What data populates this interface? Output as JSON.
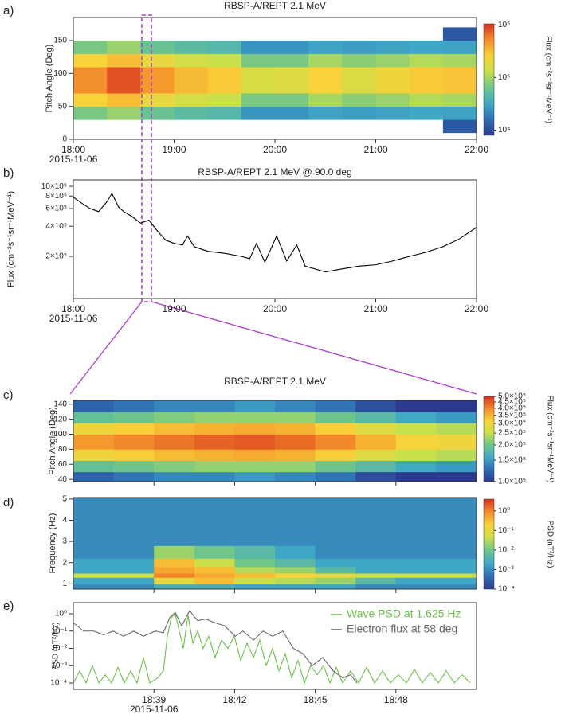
{
  "chart_data": [
    {
      "type": "heatmap",
      "panel_label": "a)",
      "title": "RBSP-A/REPT 2.1 MeV",
      "ylabel": "Pitch Angle (Deg)",
      "colorbar_label": "Flux (cm⁻²s⁻¹sr⁻¹MeV⁻¹)",
      "x_date_label": "2015-11-06",
      "xlim": [
        18,
        22
      ],
      "ylim": [
        0,
        185
      ],
      "xticks": [
        {
          "value": 18,
          "label": "18:00"
        },
        {
          "value": 19,
          "label": "19:00"
        },
        {
          "value": 20,
          "label": "20:00"
        },
        {
          "value": 21,
          "label": "21:00"
        },
        {
          "value": 22,
          "label": "22:00"
        }
      ],
      "yticks": [
        0,
        50,
        100,
        150
      ],
      "show_x_tick_labels": true,
      "x_edges": [
        18,
        18.333,
        18.667,
        19,
        19.333,
        19.667,
        20,
        20.333,
        20.667,
        21,
        21.333,
        21.667,
        22
      ],
      "y_edges": [
        10,
        30,
        50,
        70,
        90,
        110,
        130,
        150,
        170
      ],
      "z": [
        [
          null,
          null,
          null,
          null,
          null,
          null,
          null,
          null,
          null,
          null,
          null,
          12000
        ],
        [
          70000,
          90000,
          60000,
          50000,
          45000,
          25000,
          25000,
          30000,
          28000,
          30000,
          32000,
          30000
        ],
        [
          250000,
          320000,
          200000,
          150000,
          130000,
          70000,
          70000,
          100000,
          80000,
          90000,
          110000,
          100000
        ],
        [
          500000,
          800000,
          450000,
          330000,
          280000,
          160000,
          180000,
          260000,
          170000,
          220000,
          280000,
          300000
        ],
        [
          500000,
          800000,
          450000,
          330000,
          280000,
          160000,
          180000,
          260000,
          170000,
          220000,
          280000,
          300000
        ],
        [
          250000,
          320000,
          200000,
          150000,
          130000,
          70000,
          70000,
          100000,
          80000,
          90000,
          110000,
          100000
        ],
        [
          70000,
          90000,
          60000,
          50000,
          45000,
          25000,
          25000,
          30000,
          28000,
          30000,
          32000,
          30000
        ],
        [
          null,
          null,
          null,
          null,
          null,
          null,
          null,
          null,
          null,
          null,
          null,
          12000
        ]
      ],
      "log_color": true,
      "clim": [
        8000,
        1040000
      ],
      "colorbar_ticks": [
        {
          "value": 10000,
          "label": "10⁴"
        },
        {
          "value": 100000,
          "label": "10⁵"
        },
        {
          "value": 1000000,
          "label": "10⁶"
        }
      ],
      "colormap": [
        "#2b3a8f",
        "#2f6db3",
        "#3fa8c6",
        "#6dc58c",
        "#c8e04a",
        "#f9d23a",
        "#f38c2a",
        "#d7301f"
      ],
      "highlight_xlim": [
        18.68,
        18.775
      ],
      "highlight_color": "#b03cc8"
    },
    {
      "type": "line",
      "panel_label": "b)",
      "title": "RBSP-A/REPT 2.1 MeV @ 90.0 deg",
      "ylabel": "Flux (cm⁻²s⁻¹sr⁻¹MeV⁻¹)",
      "x_date_label": "2015-11-06",
      "log_y": true,
      "xlim": [
        18,
        22
      ],
      "ylim": [
        76000,
        1160000
      ],
      "xticks": [
        {
          "value": 18,
          "label": "18:00"
        },
        {
          "value": 19,
          "label": "19:00"
        },
        {
          "value": 20,
          "label": "20:00"
        },
        {
          "value": 21,
          "label": "21:00"
        },
        {
          "value": 22,
          "label": "22:00"
        }
      ],
      "yticks": [
        {
          "value": 200000,
          "label": "2×10⁵"
        },
        {
          "value": 400000,
          "label": "4×10⁵"
        },
        {
          "value": 600000,
          "label": "6×10⁵"
        },
        {
          "value": 800000,
          "label": "8×10⁵"
        },
        {
          "value": 1000000,
          "label": "10×10⁵"
        }
      ],
      "show_x_tick_labels": true,
      "color": "#000000",
      "x": [
        18,
        18.083,
        18.167,
        18.25,
        18.333,
        18.383,
        18.45,
        18.5,
        18.583,
        18.667,
        18.75,
        18.833,
        18.917,
        19,
        19.083,
        19.133,
        19.2,
        19.333,
        19.5,
        19.667,
        19.75,
        19.817,
        19.9,
        20.017,
        20.117,
        20.217,
        20.3,
        20.5,
        20.667,
        20.833,
        21,
        21.167,
        21.333,
        21.5,
        21.667,
        21.833,
        22
      ],
      "values": [
        780000,
        680000,
        600000,
        560000,
        700000,
        850000,
        620000,
        560000,
        500000,
        430000,
        460000,
        360000,
        290000,
        270000,
        260000,
        320000,
        250000,
        225000,
        215000,
        200000,
        190000,
        270000,
        175000,
        320000,
        180000,
        260000,
        160000,
        140000,
        150000,
        160000,
        165000,
        180000,
        200000,
        220000,
        250000,
        300000,
        390000
      ]
    },
    {
      "type": "heatmap",
      "panel_label": "c)",
      "title": "RBSP-A/REPT 2.1 MeV",
      "ylabel": "Pitch Angle (Deg)",
      "colorbar_label": "Flux (cm⁻²s⁻¹sr⁻¹MeV⁻¹)",
      "xlim": [
        18.6,
        18.85
      ],
      "ylim": [
        37,
        145
      ],
      "xticks": [
        18.65,
        18.7,
        18.75,
        18.8
      ],
      "yticks": [
        40,
        60,
        80,
        100,
        120,
        140
      ],
      "show_x_tick_labels": false,
      "x_edges": [
        18.6,
        18.625,
        18.65,
        18.675,
        18.7,
        18.725,
        18.75,
        18.775,
        18.8,
        18.825,
        18.85
      ],
      "y_edges": [
        37,
        50,
        65,
        80,
        100,
        115,
        130,
        145
      ],
      "z": [
        [
          120000,
          130000,
          140000,
          140000,
          150000,
          140000,
          130000,
          110000,
          100000,
          100000
        ],
        [
          190000,
          200000,
          210000,
          220000,
          220000,
          220000,
          200000,
          180000,
          160000,
          150000
        ],
        [
          300000,
          320000,
          340000,
          350000,
          360000,
          350000,
          320000,
          280000,
          250000,
          240000
        ],
        [
          380000,
          400000,
          420000,
          440000,
          450000,
          430000,
          400000,
          350000,
          310000,
          300000
        ],
        [
          300000,
          320000,
          340000,
          350000,
          360000,
          350000,
          320000,
          280000,
          250000,
          240000
        ],
        [
          190000,
          200000,
          210000,
          220000,
          220000,
          220000,
          200000,
          180000,
          160000,
          150000
        ],
        [
          120000,
          130000,
          140000,
          140000,
          150000,
          140000,
          130000,
          110000,
          100000,
          100000
        ]
      ],
      "log_color": true,
      "clim": [
        100000,
        500000
      ],
      "colorbar_ticks": [
        {
          "value": 100000,
          "label": "1.0×10⁵"
        },
        {
          "value": 150000,
          "label": "1.5×10⁵"
        },
        {
          "value": 200000,
          "label": "2.0×10⁵"
        },
        {
          "value": 250000,
          "label": "2.5×10⁵"
        },
        {
          "value": 300000,
          "label": "3.0×10⁵"
        },
        {
          "value": 350000,
          "label": "3.5×10⁵"
        },
        {
          "value": 400000,
          "label": "4.0×10⁵"
        },
        {
          "value": 450000,
          "label": "4.5×10⁵"
        },
        {
          "value": 500000,
          "label": "5.0×10⁵"
        }
      ],
      "colormap": [
        "#2b3a8f",
        "#2f6db3",
        "#3fa8c6",
        "#6dc58c",
        "#c8e04a",
        "#f9d23a",
        "#f38c2a",
        "#d7301f"
      ]
    },
    {
      "type": "heatmap",
      "panel_label": "d)",
      "ylabel": "Frequency (Hz)",
      "colorbar_label": "PSD (nT²/Hz)",
      "xlim": [
        18.6,
        18.85
      ],
      "ylim": [
        0.75,
        5.07
      ],
      "xticks": [
        18.65,
        18.7,
        18.75,
        18.8
      ],
      "yticks": [
        1,
        2,
        3,
        4,
        5
      ],
      "show_x_tick_labels": false,
      "x_edges": [
        18.6,
        18.625,
        18.65,
        18.675,
        18.7,
        18.725,
        18.75,
        18.775,
        18.8,
        18.825,
        18.85
      ],
      "y_edges": [
        0.75,
        1,
        1.3,
        1.5,
        1.8,
        2.2,
        2.8,
        3.5,
        5.07
      ],
      "z": [
        [
          0.001,
          0.001,
          0.003,
          0.003,
          0.002,
          0.002,
          0.002,
          0.001,
          0.001,
          0.001
        ],
        [
          0.002,
          0.002,
          0.1,
          0.3,
          0.05,
          0.03,
          0.02,
          0.005,
          0.002,
          0.002
        ],
        [
          0.05,
          0.05,
          1,
          0.5,
          0.3,
          0.2,
          0.1,
          0.05,
          0.05,
          0.05
        ],
        [
          0.002,
          0.002,
          0.5,
          0.3,
          0.03,
          0.02,
          0.005,
          0.002,
          0.002,
          0.002
        ],
        [
          0.002,
          0.002,
          0.3,
          0.05,
          0.01,
          0.005,
          0.002,
          0.002,
          0.002,
          0.002
        ],
        [
          0.001,
          0.001,
          0.02,
          0.01,
          0.005,
          0.002,
          0.001,
          0.001,
          0.001,
          0.001
        ],
        [
          0.001,
          0.001,
          0.001,
          0.001,
          0.001,
          0.001,
          0.001,
          0.001,
          0.001,
          0.001
        ],
        [
          0.001,
          0.001,
          0.001,
          0.001,
          0.001,
          0.001,
          0.001,
          0.001,
          0.001,
          0.001
        ]
      ],
      "log_color": true,
      "clim": [
        0.0001,
        4
      ],
      "colorbar_ticks": [
        {
          "value": 0.0001,
          "label": "10⁻⁴"
        },
        {
          "value": 0.001,
          "label": "10⁻³"
        },
        {
          "value": 0.01,
          "label": "10⁻²"
        },
        {
          "value": 0.1,
          "label": "10⁻¹"
        },
        {
          "value": 1,
          "label": "10⁰"
        }
      ],
      "colormap": [
        "#2b3a8f",
        "#2f6db3",
        "#3fa8c6",
        "#6dc58c",
        "#c8e04a",
        "#f9d23a",
        "#f38c2a",
        "#d7301f"
      ]
    },
    {
      "type": "line",
      "panel_label": "e)",
      "ylabel": "PSD (nT²/Hz)",
      "x_date_label": "2015-11-06",
      "log_y": true,
      "xlim": [
        18.6,
        18.85
      ],
      "ylim": [
        4.3e-05,
        4.4
      ],
      "xticks": [
        {
          "value": 18.65,
          "label": "18:39"
        },
        {
          "value": 18.7,
          "label": "18:42"
        },
        {
          "value": 18.75,
          "label": "18:45"
        },
        {
          "value": 18.8,
          "label": "18:48"
        }
      ],
      "yticks": [
        {
          "value": 1,
          "label": "10⁰"
        },
        {
          "value": 0.1,
          "label": "10⁻¹"
        },
        {
          "value": 0.01,
          "label": "10⁻²"
        },
        {
          "value": 0.001,
          "label": "10⁻³"
        },
        {
          "value": 0.0001,
          "label": "10⁻⁴"
        }
      ],
      "show_x_tick_labels": true,
      "legend": "upper right",
      "series": [
        {
          "name": "Wave PSD at 1.625 Hz",
          "color": "#6cc04a",
          "x": [
            18.6,
            18.604,
            18.6079,
            18.6119,
            18.6158,
            18.6198,
            18.6237,
            18.6277,
            18.6316,
            18.6356,
            18.6395,
            18.6435,
            18.6474,
            18.6524,
            18.6558,
            18.6583,
            18.6608,
            18.6632,
            18.6657,
            18.6682,
            18.6711,
            18.6741,
            18.6771,
            18.6805,
            18.684,
            18.6879,
            18.6919,
            18.6958,
            18.6998,
            18.7038,
            18.7077,
            18.7117,
            18.7156,
            18.7196,
            18.7235,
            18.7275,
            18.7314,
            18.7354,
            18.7393,
            18.7433,
            18.7472,
            18.7512,
            18.7551,
            18.7591,
            18.763,
            18.767,
            18.7719,
            18.7769,
            18.7818,
            18.7868,
            18.7917,
            18.7966,
            18.8016,
            18.8065,
            18.8115,
            18.8164,
            18.8213,
            18.8263,
            18.8312,
            18.8362,
            18.8411,
            18.8461
          ],
          "values": [
            0.0001,
            0.0005,
            0.0001,
            0.001,
            0.0001,
            0.0003,
            0.0001,
            0.0008,
            0.0001,
            0.0005,
            0.0001,
            0.003,
            0.0001,
            0.0002,
            0.0005,
            0.05,
            0.6,
            1,
            0.1,
            0.01,
            0.8,
            0.02,
            0.1,
            0.01,
            0.05,
            0.003,
            0.03,
            0.01,
            0.05,
            0.002,
            0.02,
            0.003,
            0.03,
            0.001,
            0.01,
            0.0005,
            0.005,
            0.0002,
            0.002,
            0.0001,
            0.001,
            0.0003,
            0.001,
            0.0001,
            0.0008,
            0.0001,
            0.0005,
            0.0001,
            0.0008,
            0.0001,
            0.0005,
            0.0001,
            0.0003,
            0.0001,
            0.0006,
            0.0001,
            0.0004,
            0.0001,
            0.0005,
            0.0001,
            0.0003,
            0.0001
          ]
        },
        {
          "name": "Electron flux at 58 deg",
          "color": "#666666",
          "x": [
            18.6,
            18.6064,
            18.6128,
            18.6188,
            18.6247,
            18.6311,
            18.6375,
            18.6435,
            18.6509,
            18.6558,
            18.6598,
            18.6632,
            18.6672,
            18.6721,
            18.6771,
            18.682,
            18.6879,
            18.6939,
            18.7003,
            18.7052,
            18.7117,
            18.7176,
            18.7235,
            18.7299,
            18.7364,
            18.7423,
            18.7482,
            18.7546,
            18.7611,
            18.767,
            18.7719,
            18.7759
          ],
          "values": [
            0.3,
            0.1,
            0.1,
            0.06,
            0.1,
            0.05,
            0.1,
            0.05,
            0.1,
            0.08,
            0.6,
            1.2,
            0.2,
            1.5,
            0.4,
            0.5,
            0.3,
            0.2,
            0.05,
            0.1,
            0.03,
            0.1,
            0.05,
            0.1,
            0.01,
            0.005,
            0.001,
            0.003,
            0.0005,
            0.0002,
            0.0003,
            0.0001
          ]
        }
      ]
    }
  ]
}
